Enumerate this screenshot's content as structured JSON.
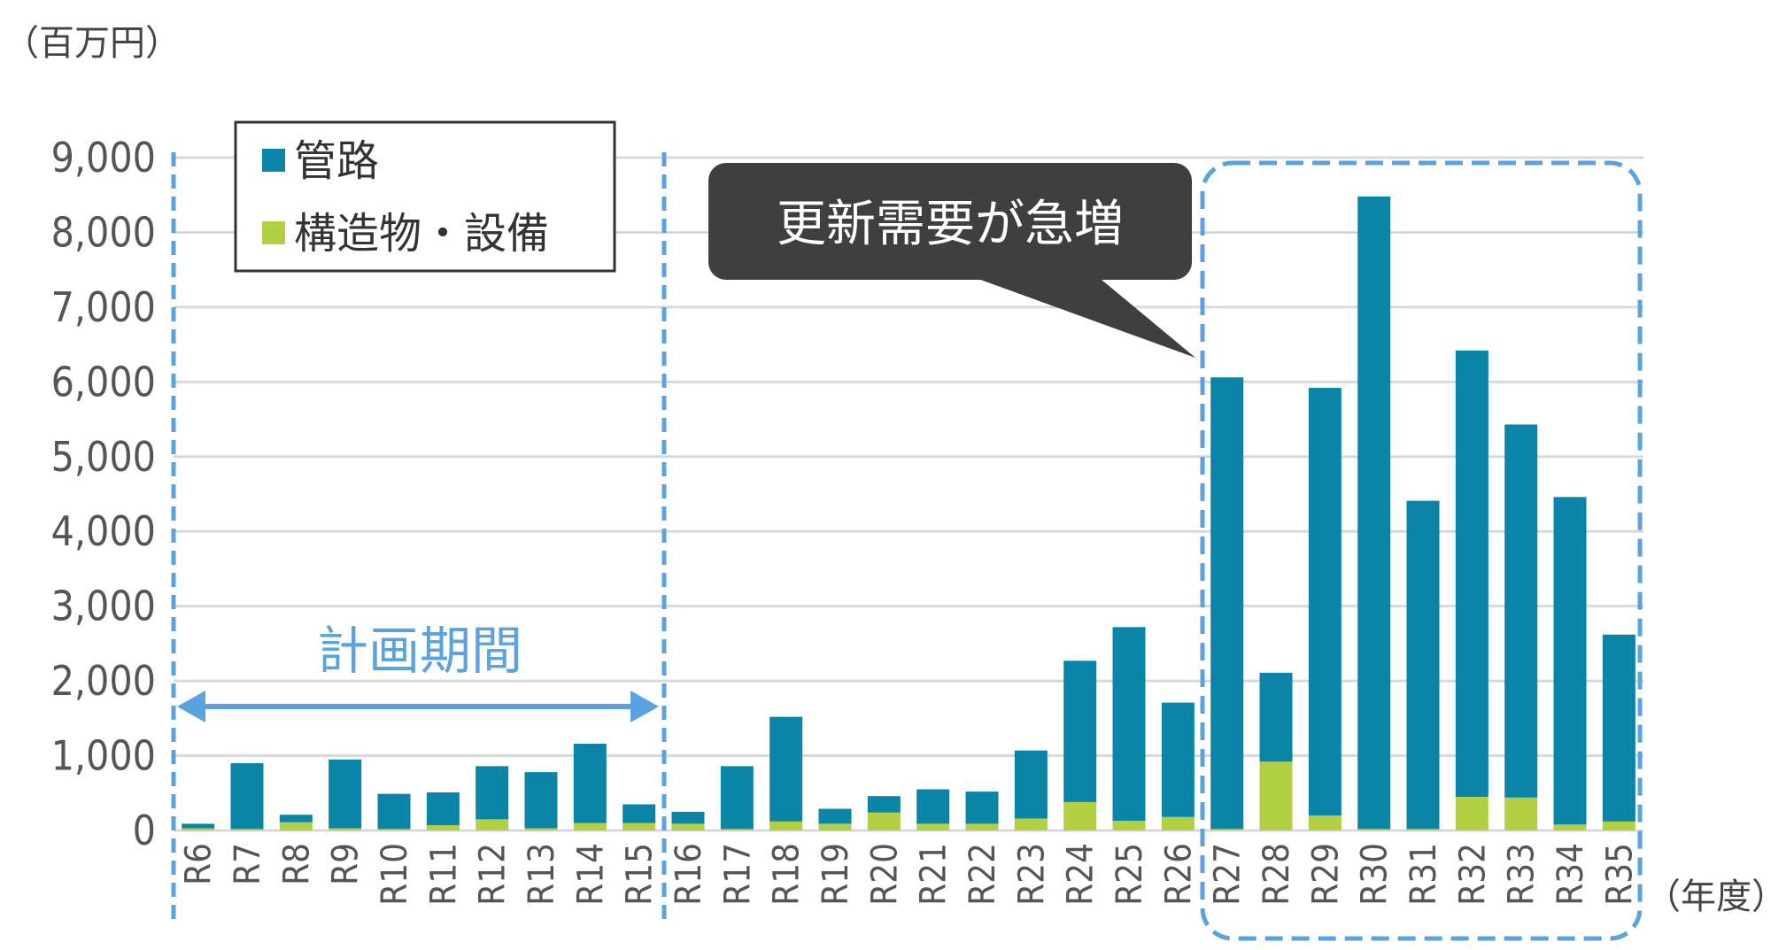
{
  "chart_data": {
    "type": "bar",
    "stacked": true,
    "y_unit_label": "（百万円）",
    "x_unit_label": "（年度）",
    "categories": [
      "R6",
      "R7",
      "R8",
      "R9",
      "R10",
      "R11",
      "R12",
      "R13",
      "R14",
      "R15",
      "R16",
      "R17",
      "R18",
      "R19",
      "R20",
      "R21",
      "R22",
      "R23",
      "R24",
      "R25",
      "R26",
      "R27",
      "R28",
      "R29",
      "R30",
      "R31",
      "R32",
      "R33",
      "R34",
      "R35"
    ],
    "series": [
      {
        "name": "構造物・設備",
        "color": "#b3d045",
        "values": [
          30,
          20,
          110,
          30,
          20,
          70,
          150,
          30,
          100,
          100,
          90,
          20,
          120,
          90,
          240,
          90,
          90,
          160,
          380,
          130,
          180,
          20,
          920,
          200,
          20,
          20,
          450,
          440,
          80,
          120
        ]
      },
      {
        "name": "管路",
        "color": "#0a85a8",
        "values": [
          60,
          880,
          100,
          920,
          470,
          440,
          710,
          750,
          1060,
          250,
          160,
          840,
          1400,
          200,
          220,
          460,
          430,
          910,
          1890,
          2590,
          1530,
          6040,
          1190,
          5720,
          8460,
          4390,
          5970,
          4990,
          4380,
          2500
        ]
      }
    ],
    "y_ticks": [
      "0",
      "1,000",
      "2,000",
      "3,000",
      "4,000",
      "5,000",
      "6,000",
      "7,000",
      "8,000",
      "9,000"
    ],
    "ylim": [
      0,
      9000
    ],
    "legend": {
      "position": "top-left",
      "items": [
        "管路",
        "構造物・設備"
      ]
    },
    "annotations": {
      "callout": "更新需要が急増",
      "period": "計画期間"
    },
    "colors": {
      "grid": "#d9d9d9",
      "dashed_box": "#5ba3e0",
      "callout_bg": "#3f3f3f"
    }
  }
}
